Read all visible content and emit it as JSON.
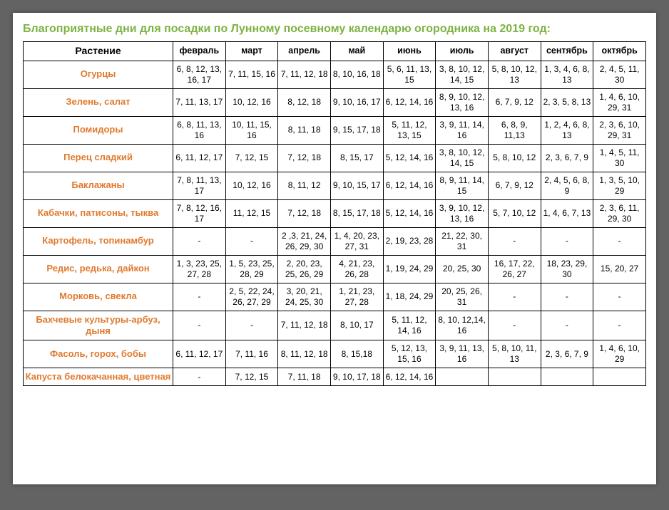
{
  "title": "Благоприятные дни для посадки по Лунному посевному календарю огородника на 2019 год:",
  "columns": [
    "Растение",
    "февраль",
    "март",
    "апрель",
    "май",
    "июнь",
    "июль",
    "август",
    "сентябрь",
    "октябрь"
  ],
  "rows": [
    {
      "name": "Огурцы",
      "cells": [
        "6, 8, 12, 13, 16, 17",
        "7, 11, 15, 16",
        "7, 11, 12, 18",
        "8, 10, 16, 18",
        "5, 6, 11, 13, 15",
        "3, 8, 10, 12, 14, 15",
        "5, 8, 10, 12, 13",
        "1, 3, 4, 6, 8, 13",
        "2, 4, 5, 11, 30"
      ]
    },
    {
      "name": "Зелень, салат",
      "cells": [
        "7, 11, 13, 17",
        "10, 12, 16",
        "8, 12, 18",
        "9, 10, 16, 17",
        "6, 12, 14, 16",
        "8, 9, 10, 12, 13, 16",
        "6, 7, 9, 12",
        "2, 3, 5, 8, 13",
        "1, 4, 6, 10, 29, 31"
      ]
    },
    {
      "name": "Помидоры",
      "cells": [
        "6, 8, 11, 13, 16",
        "10, 11, 15, 16",
        "8, 11, 18",
        "9, 15, 17, 18",
        "5, 11, 12, 13, 15",
        "3, 9, 11, 14, 16",
        "6, 8, 9, 11,13",
        "1, 2, 4, 6, 8, 13",
        "2, 3, 6, 10, 29, 31"
      ]
    },
    {
      "name": "Перец сладкий",
      "cells": [
        "6, 11, 12, 17",
        "7, 12, 15",
        "7, 12, 18",
        "8, 15, 17",
        "5, 12, 14, 16",
        "3, 8, 10, 12, 14, 15",
        "5, 8, 10, 12",
        "2, 3, 6, 7, 9",
        "1, 4, 5, 11, 30"
      ]
    },
    {
      "name": "Баклажаны",
      "cells": [
        "7, 8, 11, 13, 17",
        "10, 12, 16",
        "8, 11, 12",
        "9, 10, 15, 17",
        "6, 12, 14, 16",
        "8, 9, 11, 14, 15",
        "6, 7, 9, 12",
        "2, 4, 5, 6, 8, 9",
        "1, 3, 5, 10, 29"
      ]
    },
    {
      "name": "Кабачки, патисоны, тыква",
      "cells": [
        "7, 8, 12, 16, 17",
        "11, 12, 15",
        "7, 12, 18",
        "8, 15, 17, 18",
        "5, 12, 14, 16",
        "3, 9, 10, 12, 13, 16",
        "5, 7, 10, 12",
        "1, 4, 6, 7, 13",
        "2, 3, 6, 11, 29, 30"
      ]
    },
    {
      "name": "Картофель, топинамбур",
      "cells": [
        "-",
        "-",
        "2 ,3, 21, 24, 26, 29, 30",
        "1, 4, 20, 23, 27, 31",
        "2, 19, 23, 28",
        "21, 22, 30, 31",
        "-",
        "-",
        "-"
      ]
    },
    {
      "name": "Редис, редька, дайкон",
      "cells": [
        "1, 3, 23, 25, 27, 28",
        "1, 5, 23, 25, 28, 29",
        "2, 20, 23, 25, 26, 29",
        "4, 21, 23, 26, 28",
        "1, 19, 24, 29",
        "20, 25, 30",
        "16, 17, 22, 26, 27",
        "18, 23, 29, 30",
        "15, 20, 27"
      ]
    },
    {
      "name": "Морковь, свекла",
      "cells": [
        "-",
        "2, 5, 22, 24, 26, 27, 29",
        "3, 20, 21, 24, 25, 30",
        "1, 21, 23, 27, 28",
        "1, 18, 24, 29",
        "20, 25, 26, 31",
        "-",
        "-",
        "-"
      ]
    },
    {
      "name": "Бахчевые культуры-арбуз, дыня",
      "cells": [
        "-",
        "-",
        "7, 11, 12, 18",
        "8, 10, 17",
        "5, 11, 12, 14, 16",
        "8, 10, 12,14, 16",
        "-",
        "-",
        "-"
      ]
    },
    {
      "name": "Фасоль, горох, бобы",
      "cells": [
        "6, 11, 12, 17",
        "7, 11, 16",
        "8, 11, 12, 18",
        "8, 15,18",
        "5, 12, 13, 15, 16",
        "3, 9, 11, 13, 16",
        "5, 8, 10, 11, 13",
        "2, 3, 6, 7, 9",
        "1, 4, 6, 10, 29"
      ]
    },
    {
      "name": "Капуста белокачанная, цветная",
      "cells": [
        "-",
        "7, 12, 15",
        "7, 11, 18",
        "9, 10, 17, 18",
        "6, 12, 14, 16",
        "",
        "",
        "",
        ""
      ]
    }
  ],
  "colors": {
    "title": "#7cb342",
    "plant": "#e07a2e",
    "border": "#000000",
    "background": "#ffffff",
    "page_bg": "#636363"
  },
  "font_sizes": {
    "title": 16,
    "header": 12.5,
    "plant": 13,
    "cell": 12
  }
}
